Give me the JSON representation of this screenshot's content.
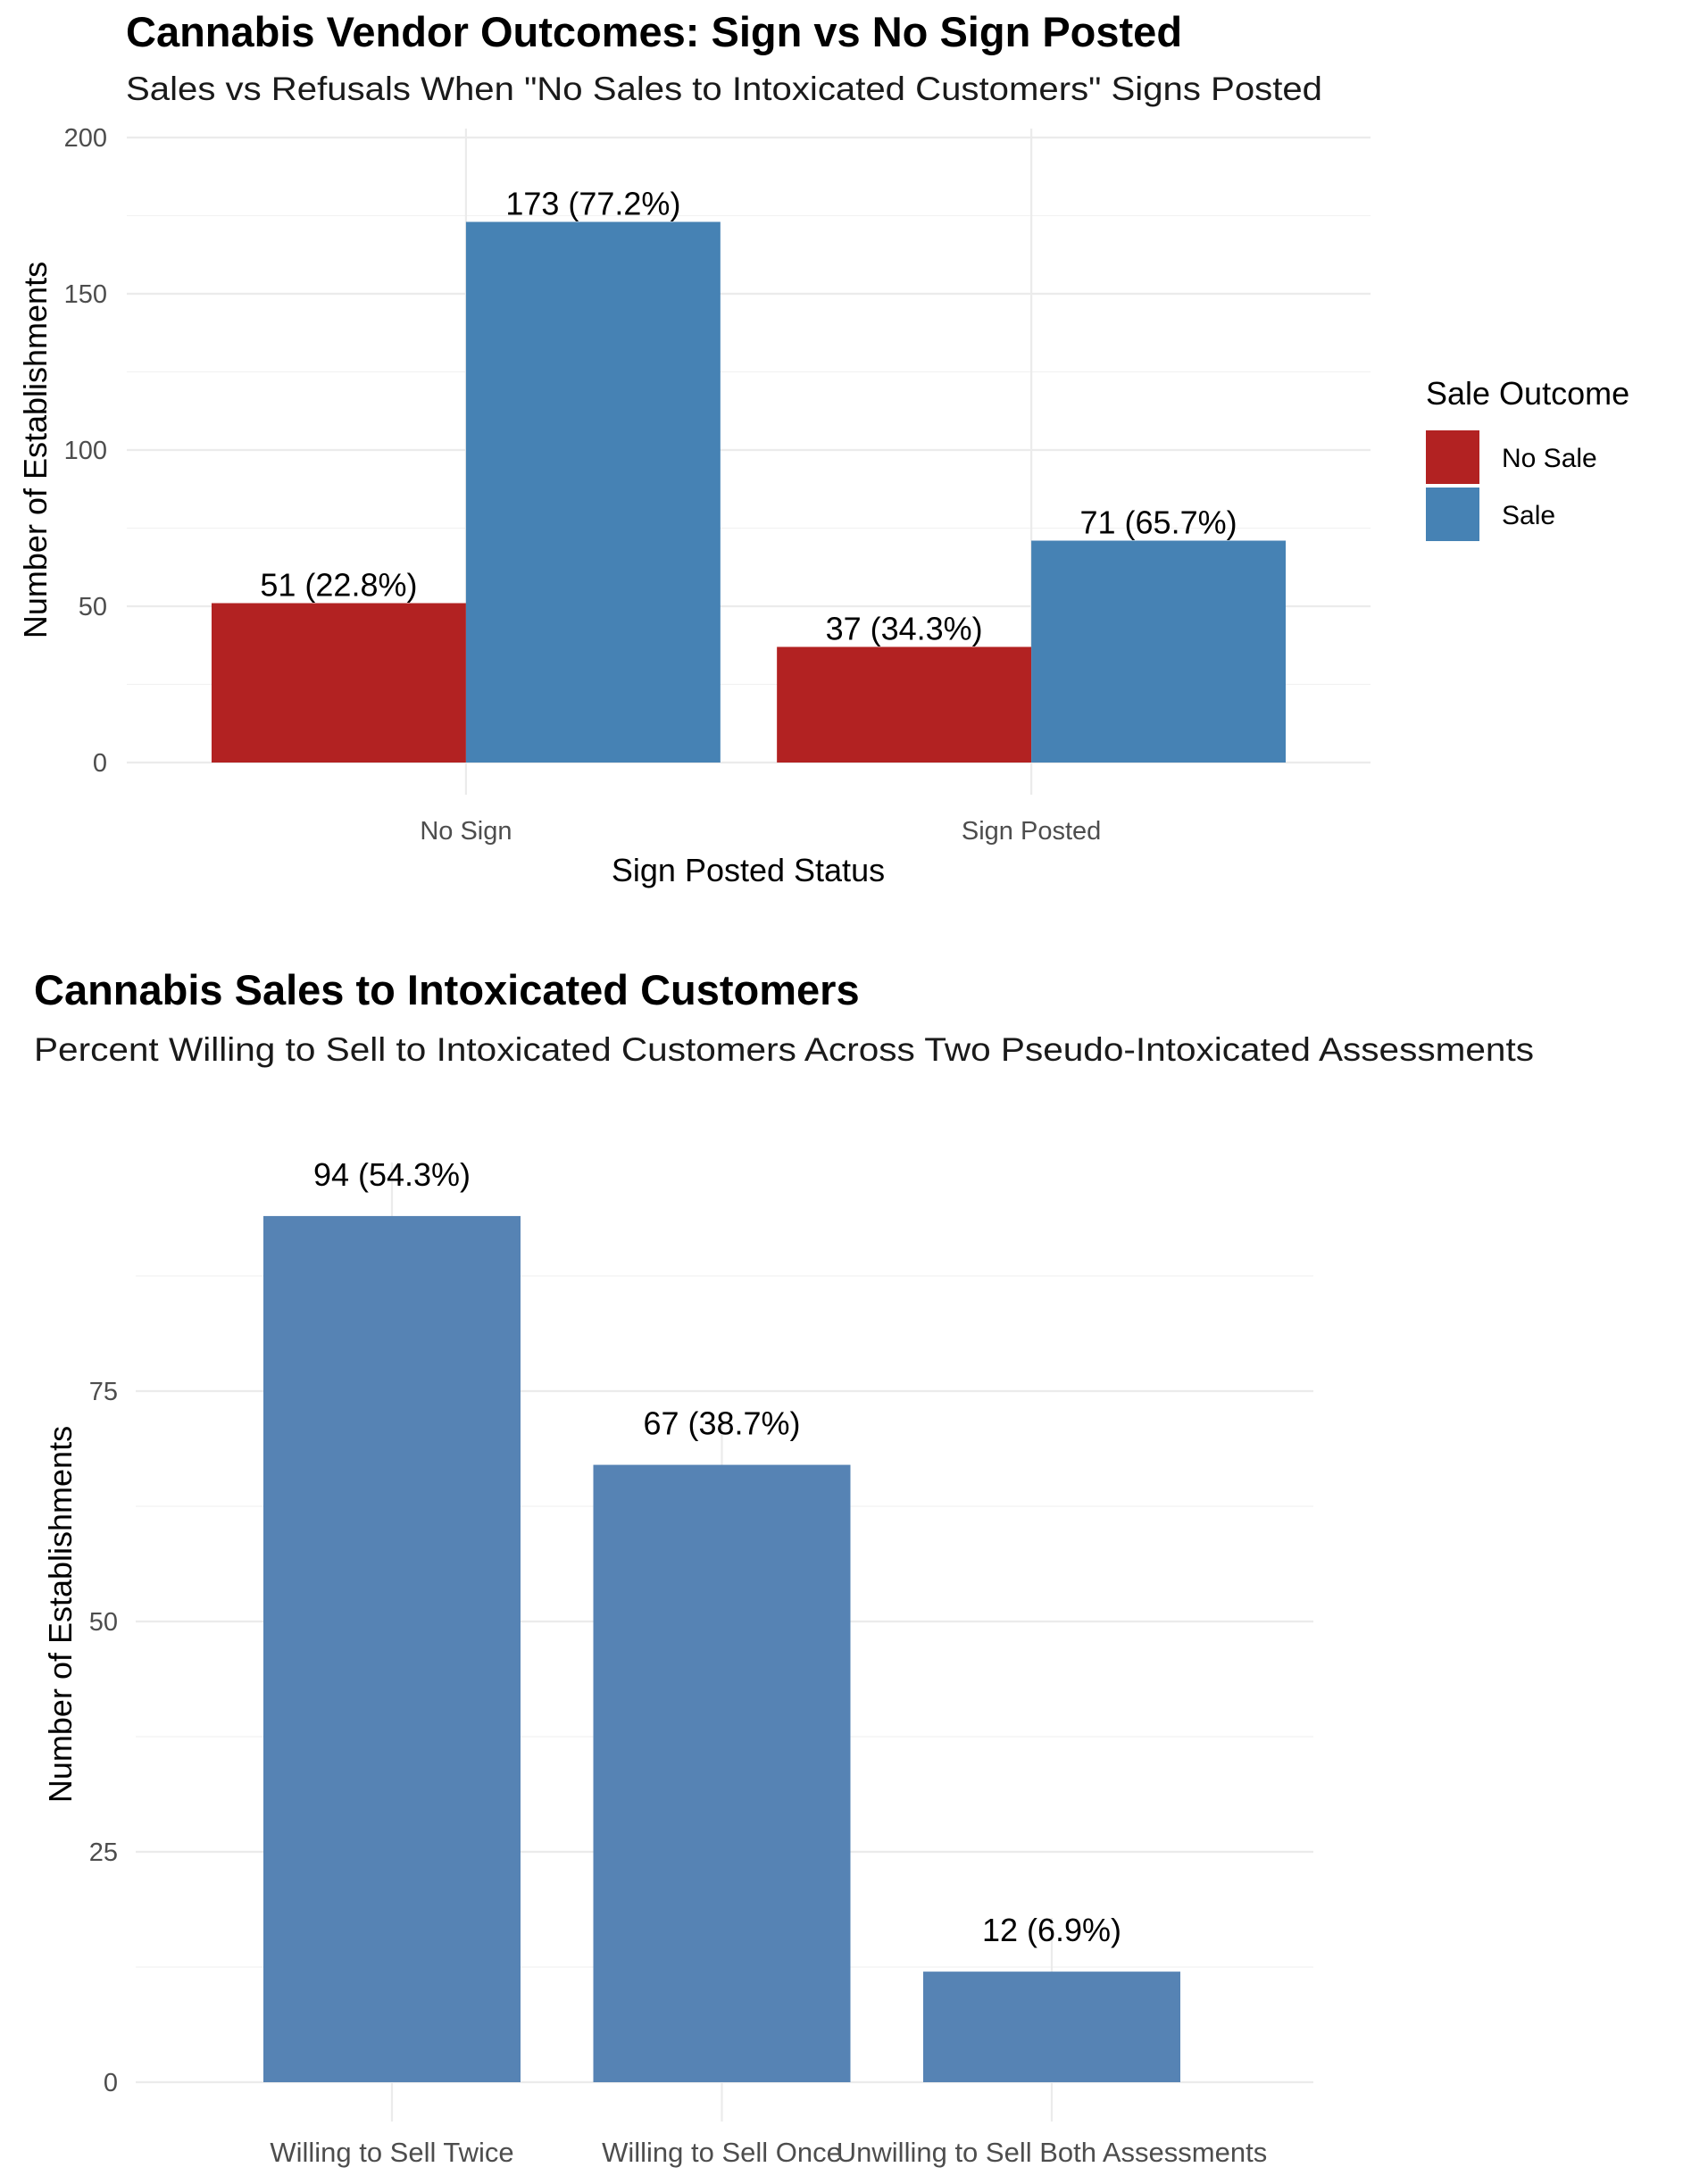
{
  "chart_data": [
    {
      "type": "bar",
      "title": "Cannabis Vendor Outcomes: Sign vs No Sign Posted",
      "subtitle": "Sales vs Refusals When \"No Sales to Intoxicated Customers\" Signs Posted",
      "xlabel": "Sign Posted Status",
      "ylabel": "Number of Establishments",
      "categories": [
        "No Sign",
        "Sign Posted"
      ],
      "series": [
        {
          "name": "No Sale",
          "color": "#B22222",
          "values": [
            51,
            37
          ],
          "labels": [
            "51 (22.8%)",
            "37 (34.3%)"
          ]
        },
        {
          "name": "Sale",
          "color": "#4682B4",
          "values": [
            173,
            71
          ],
          "labels": [
            "173 (77.2%)",
            "71 (65.7%)"
          ]
        }
      ],
      "ylim": [
        0,
        200
      ],
      "yticks": [
        0,
        50,
        100,
        150,
        200
      ],
      "grid": true,
      "legend": {
        "title": "Sale Outcome",
        "position": "right"
      }
    },
    {
      "type": "bar",
      "title": "Cannabis Sales to Intoxicated Customers",
      "subtitle": "Percent Willing to Sell to Intoxicated Customers Across Two Pseudo-Intoxicated Assessments",
      "xlabel": "",
      "ylabel": "Number of Establishments",
      "categories": [
        "Willing to Sell Twice",
        "Willing to Sell Once",
        "Unwilling to Sell Both Assessments"
      ],
      "values": [
        94,
        67,
        12
      ],
      "labels": [
        "94 (54.3%)",
        "67 (38.7%)",
        "12 (6.9%)"
      ],
      "color": "#5683B4",
      "ylim": [
        0,
        100
      ],
      "yticks": [
        0,
        25,
        50,
        75
      ],
      "grid": true,
      "legend": null
    }
  ]
}
